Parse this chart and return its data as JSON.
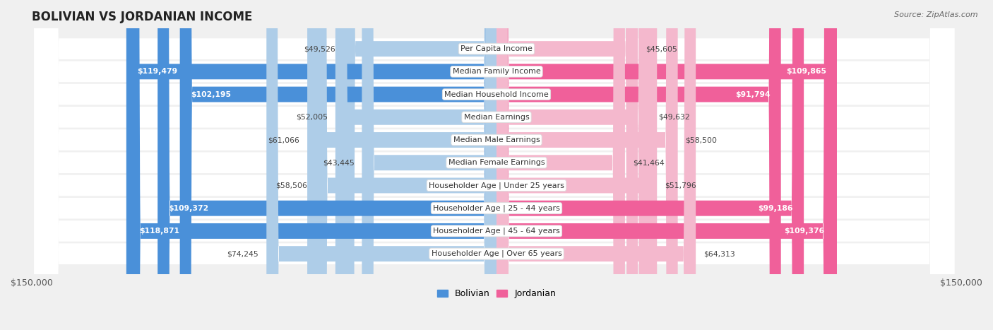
{
  "title": "BOLIVIAN VS JORDANIAN INCOME",
  "source": "Source: ZipAtlas.com",
  "categories": [
    "Per Capita Income",
    "Median Family Income",
    "Median Household Income",
    "Median Earnings",
    "Median Male Earnings",
    "Median Female Earnings",
    "Householder Age | Under 25 years",
    "Householder Age | 25 - 44 years",
    "Householder Age | 45 - 64 years",
    "Householder Age | Over 65 years"
  ],
  "bolivian_values": [
    49526,
    119479,
    102195,
    52005,
    61066,
    43445,
    58506,
    109372,
    118871,
    74245
  ],
  "jordanian_values": [
    45605,
    109865,
    91794,
    49632,
    58500,
    41464,
    51796,
    99186,
    109376,
    64313
  ],
  "max_value": 150000,
  "bolivian_color_low": "#aecde8",
  "bolivian_color_high": "#4a90d9",
  "jordanian_color_low": "#f4b8cd",
  "jordanian_color_high": "#f0609a",
  "high_threshold": 80000,
  "bg_color": "#f0f0f0",
  "row_bg": "#ffffff",
  "label_fontsize": 8.0,
  "title_fontsize": 12,
  "value_fontsize": 7.8
}
